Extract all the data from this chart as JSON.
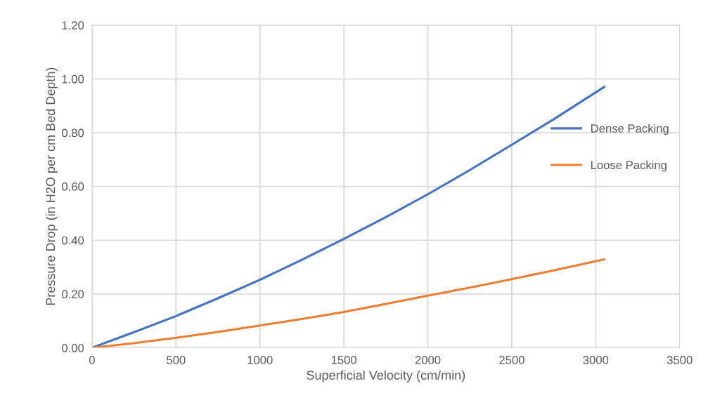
{
  "chart_data": {
    "type": "line",
    "xlabel": "Superficial Velocity (cm/min)",
    "ylabel": "Pressure Drop (in H2O per cm Bed Depth)",
    "x": [
      0,
      250,
      500,
      750,
      1000,
      1250,
      1500,
      1750,
      2000,
      2250,
      2500,
      2750,
      3050
    ],
    "series": [
      {
        "name": "Dense Packing",
        "color": "#4472c4",
        "values": [
          0,
          0.058,
          0.118,
          0.184,
          0.253,
          0.327,
          0.405,
          0.486,
          0.571,
          0.661,
          0.755,
          0.85,
          0.97
        ]
      },
      {
        "name": "Loose Packing",
        "color": "#ed7d31",
        "values": [
          0,
          0.017,
          0.037,
          0.059,
          0.083,
          0.107,
          0.133,
          0.163,
          0.194,
          0.224,
          0.255,
          0.288,
          0.329
        ]
      }
    ],
    "xlim": [
      0,
      3500
    ],
    "xticks": [
      0,
      500,
      1000,
      1500,
      2000,
      2500,
      3000,
      3500
    ],
    "ylim": [
      0,
      1.2
    ],
    "yticks": [
      {
        "value": 0,
        "label": "0.00"
      },
      {
        "value": 0.2,
        "label": "0.20"
      },
      {
        "value": 0.4,
        "label": "0.40"
      },
      {
        "value": 0.6,
        "label": "0.60"
      },
      {
        "value": 0.8,
        "label": "0.80"
      },
      {
        "value": 1.0,
        "label": "1.00"
      },
      {
        "value": 1.2,
        "label": "1.20"
      }
    ],
    "grid": true,
    "legend": "right",
    "marker": "none",
    "line_style": "solid"
  }
}
